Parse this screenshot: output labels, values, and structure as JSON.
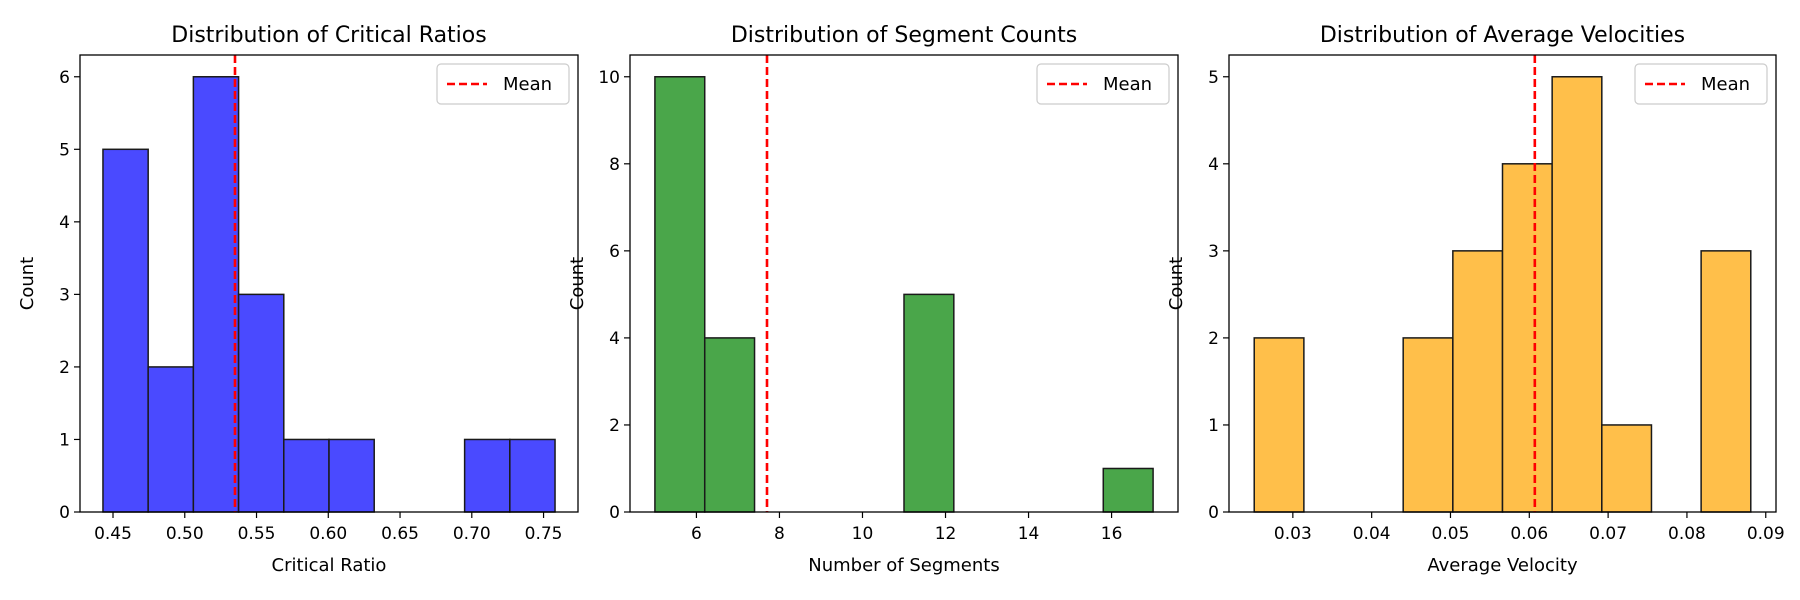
{
  "chart_data": [
    {
      "type": "bar",
      "title": "Distribution of Critical Ratios",
      "xlabel": "Critical Ratio",
      "ylabel": "Count",
      "bin_edges": [
        0.443,
        0.4745,
        0.506,
        0.5375,
        0.569,
        0.6005,
        0.632,
        0.6635,
        0.695,
        0.7265,
        0.758
      ],
      "values": [
        5,
        2,
        6,
        3,
        1,
        1,
        0,
        0,
        1,
        1
      ],
      "mean": 0.535,
      "color": "#4a4aff",
      "xlim": [
        0.427,
        0.774
      ],
      "ylim": [
        0,
        6.3
      ],
      "xticks": [
        0.45,
        0.5,
        0.55,
        0.6,
        0.65,
        0.7,
        0.75
      ],
      "xtick_labels": [
        "0.45",
        "0.50",
        "0.55",
        "0.60",
        "0.65",
        "0.70",
        "0.75"
      ],
      "yticks": [
        0,
        1,
        2,
        3,
        4,
        5,
        6
      ],
      "legend": {
        "label": "Mean",
        "position": "upper right"
      }
    },
    {
      "type": "bar",
      "title": "Distribution of Segment Counts",
      "xlabel": "Number of Segments",
      "ylabel": "Count",
      "bin_edges": [
        5,
        6.2,
        7.4,
        8.6,
        9.8,
        11,
        12.2,
        13.4,
        14.6,
        15.8,
        17
      ],
      "values": [
        10,
        4,
        0,
        0,
        0,
        5,
        0,
        0,
        0,
        1
      ],
      "mean": 7.7,
      "color": "#4aa64a",
      "xlim": [
        4.4,
        17.6
      ],
      "ylim": [
        0,
        10.5
      ],
      "xticks": [
        6,
        8,
        10,
        12,
        14,
        16
      ],
      "xtick_labels": [
        "6",
        "8",
        "10",
        "12",
        "14",
        "16"
      ],
      "yticks": [
        0,
        2,
        4,
        6,
        8,
        10
      ],
      "legend": {
        "label": "Mean",
        "position": "upper right"
      }
    },
    {
      "type": "bar",
      "title": "Distribution of Average Velocities",
      "xlabel": "Average Velocity",
      "ylabel": "Count",
      "bin_edges": [
        0.0251,
        0.0314,
        0.0377,
        0.044,
        0.0503,
        0.0566,
        0.0629,
        0.0692,
        0.0755,
        0.0818,
        0.0881
      ],
      "values": [
        2,
        0,
        0,
        2,
        3,
        4,
        5,
        1,
        0,
        3
      ],
      "mean": 0.0607,
      "color": "#ffbf4a",
      "xlim": [
        0.0219,
        0.0913
      ],
      "ylim": [
        0,
        5.25
      ],
      "xticks": [
        0.03,
        0.04,
        0.05,
        0.06,
        0.07,
        0.08,
        0.09
      ],
      "xtick_labels": [
        "0.03",
        "0.04",
        "0.05",
        "0.06",
        "0.07",
        "0.08",
        "0.09"
      ],
      "yticks": [
        0,
        1,
        2,
        3,
        4,
        5
      ],
      "legend": {
        "label": "Mean",
        "position": "upper right"
      }
    }
  ]
}
